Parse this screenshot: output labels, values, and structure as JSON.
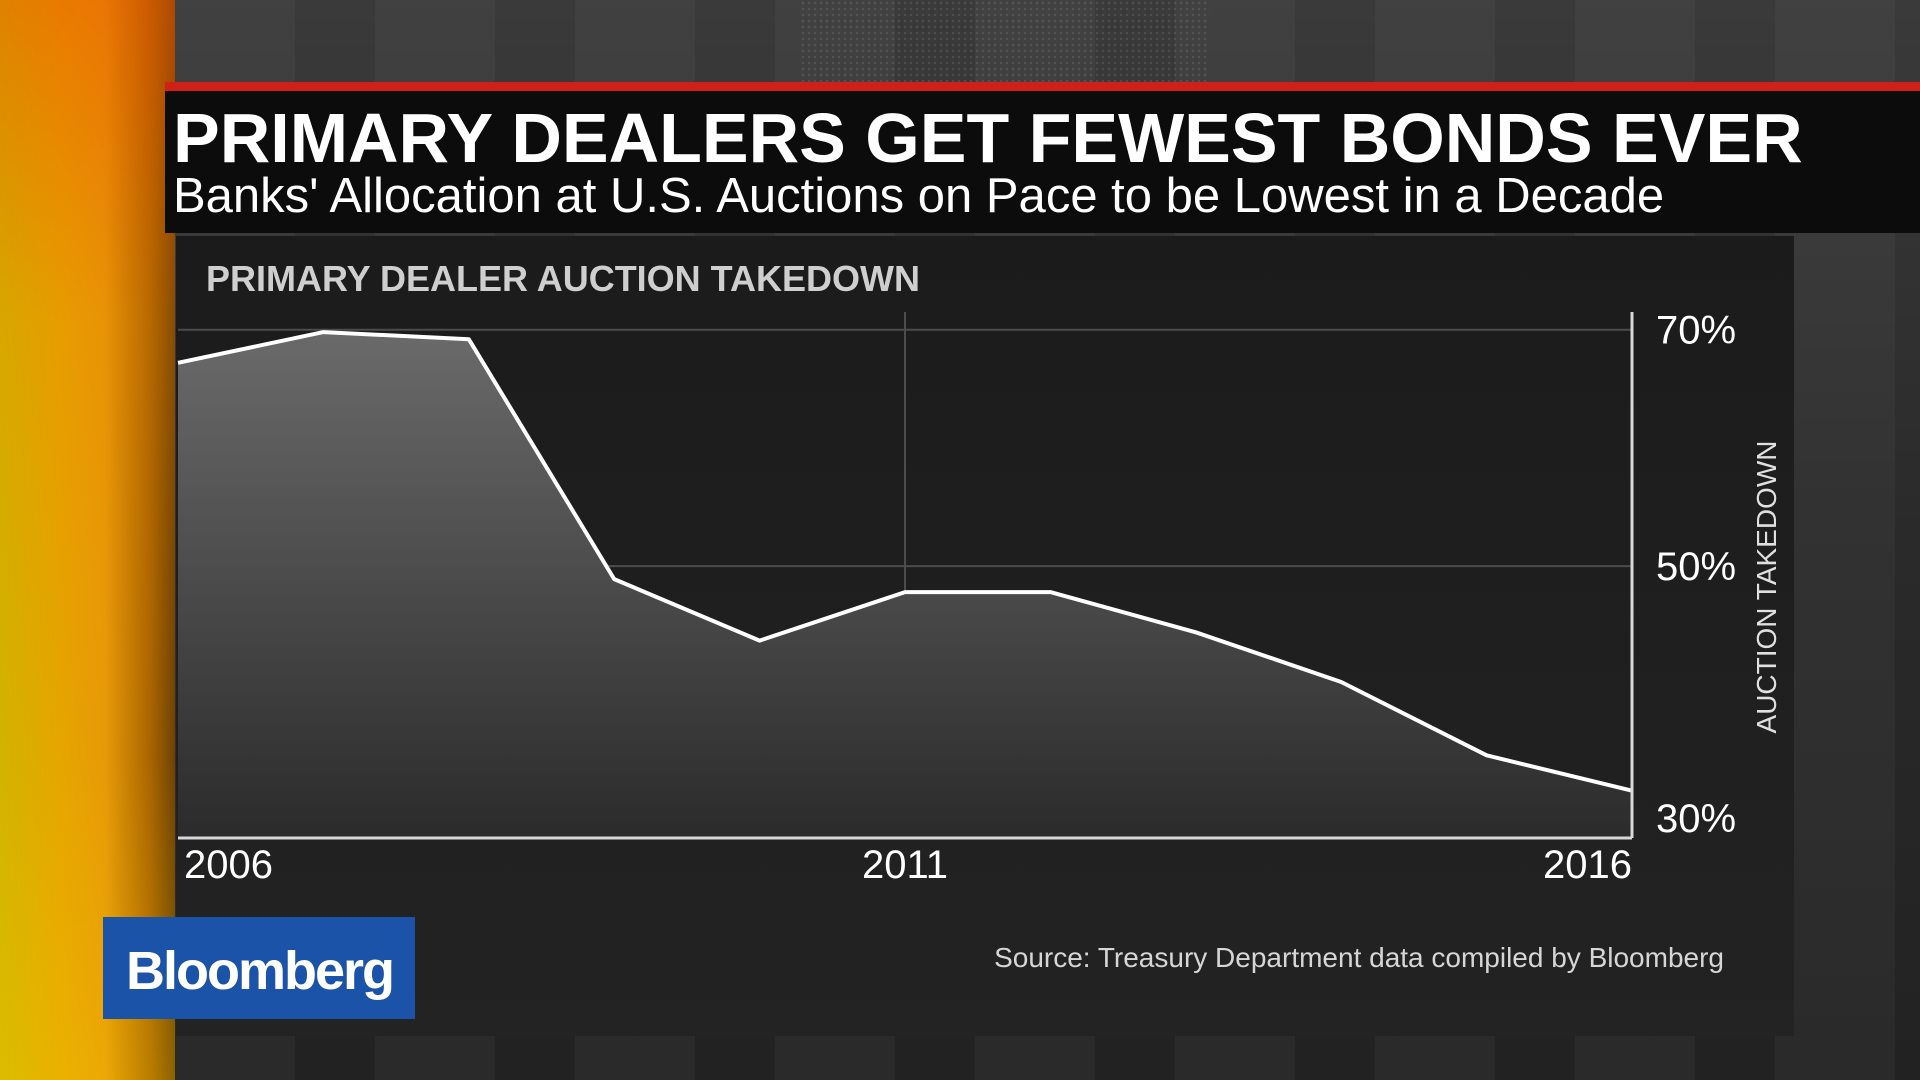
{
  "header": {
    "title": "PRIMARY DEALERS GET FEWEST BONDS EVER",
    "subtitle": "Banks' Allocation at U.S. Auctions on Pace to be Lowest in a Decade"
  },
  "chart_label": "PRIMARY DEALER AUCTION TAKEDOWN",
  "source": "Source: Treasury Department data compiled by Bloomberg",
  "brand": {
    "logo_text": "Bloomberg",
    "logo_color": "#1a53a7",
    "accent": "#d0201a"
  },
  "chart_data": {
    "type": "area",
    "title": "PRIMARY DEALER AUCTION TAKEDOWN",
    "ylabel": "AUCTION TAKEDOWN",
    "xlabel": "",
    "x": [
      2006.0,
      2007.0,
      2008.0,
      2009.0,
      2010.0,
      2011.0,
      2012.0,
      2013.0,
      2014.0,
      2015.0,
      2016.0
    ],
    "values": [
      67.2,
      69.8,
      69.2,
      48.9,
      43.7,
      47.8,
      47.8,
      44.4,
      40.2,
      34.0,
      31.0
    ],
    "x_ticks": [
      {
        "value": 2006,
        "label": "2006"
      },
      {
        "value": 2011,
        "label": "2011"
      },
      {
        "value": 2016,
        "label": "2016"
      }
    ],
    "y_ticks": [
      {
        "value": 70,
        "label": "70%"
      },
      {
        "value": 50,
        "label": "50%"
      },
      {
        "value": 30,
        "label": "30%"
      }
    ],
    "xlim": [
      2006,
      2016
    ],
    "ylim": [
      27,
      71.5
    ],
    "grid": true,
    "y_axis_side": "right",
    "line_color": "#ffffff"
  }
}
